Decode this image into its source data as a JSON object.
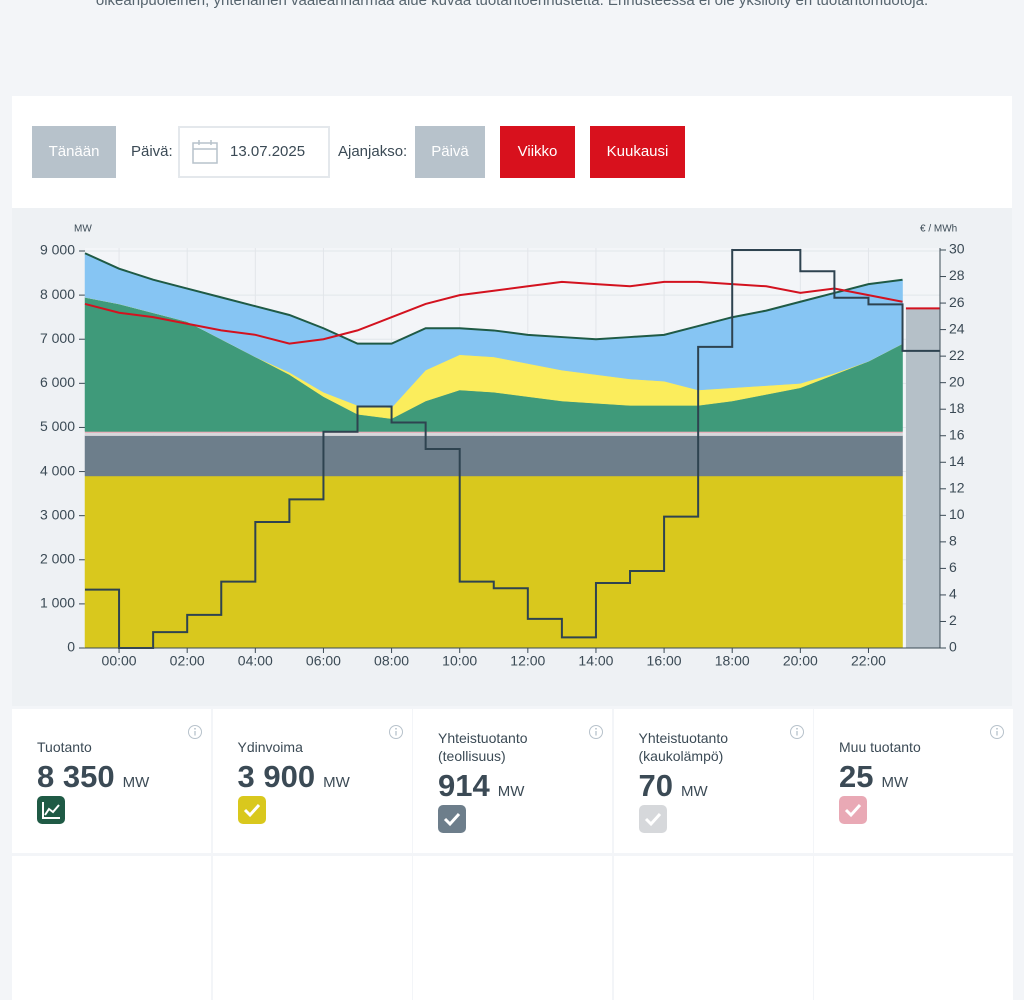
{
  "intro_text": "oikeanpuoleinen, yhtenäinen vaaleanharmaa alue kuvaa tuotantoennustetta. Ennusteessa ei ole yksilöity eri tuotantomuotoja.",
  "controls": {
    "today": "Tänään",
    "date_label": "Päivä:",
    "date": "13.07.2025",
    "period_label": "Ajanjakso:",
    "periods": [
      {
        "label": "Päivä",
        "active": true
      },
      {
        "label": "Viikko",
        "active": false
      },
      {
        "label": "Kuukausi",
        "active": false
      }
    ]
  },
  "chart_data": {
    "type": "area",
    "stacked": true,
    "y_unit": "MW",
    "y2_unit": "€ / MWh",
    "x": [
      -1,
      0,
      1,
      2,
      3,
      4,
      5,
      6,
      7,
      8,
      9,
      10,
      11,
      12,
      13,
      14,
      15,
      16,
      17,
      18,
      19,
      20,
      21,
      22,
      23
    ],
    "xlim": [
      -1,
      24.1
    ],
    "xticks": [
      {
        "value": 0,
        "label": "00:00"
      },
      {
        "value": 2,
        "label": "02:00"
      },
      {
        "value": 4,
        "label": "04:00"
      },
      {
        "value": 6,
        "label": "06:00"
      },
      {
        "value": 8,
        "label": "08:00"
      },
      {
        "value": 10,
        "label": "10:00"
      },
      {
        "value": 12,
        "label": "12:00"
      },
      {
        "value": 14,
        "label": "14:00"
      },
      {
        "value": 16,
        "label": "16:00"
      },
      {
        "value": 18,
        "label": "18:00"
      },
      {
        "value": 20,
        "label": "20:00"
      },
      {
        "value": 22,
        "label": "22:00"
      }
    ],
    "ylim": [
      0,
      9000
    ],
    "yticks": [
      0,
      {
        "value": 1000,
        "label": "1 000"
      },
      {
        "value": 2000,
        "label": "2 000"
      },
      {
        "value": 3000,
        "label": "3 000"
      },
      {
        "value": 4000,
        "label": "4 000"
      },
      {
        "value": 5000,
        "label": "5 000"
      },
      {
        "value": 6000,
        "label": "6 000"
      },
      {
        "value": 7000,
        "label": "7 000"
      },
      {
        "value": 8000,
        "label": "8 000"
      },
      {
        "value": 9000,
        "label": "9 000"
      }
    ],
    "y2lim": [
      0,
      30
    ],
    "y2ticks": [
      0,
      2,
      4,
      6,
      8,
      10,
      12,
      14,
      16,
      18,
      20,
      22,
      24,
      26,
      28,
      30
    ],
    "grid": true,
    "edge_color": "#1f5a45",
    "series": [
      {
        "type": "area",
        "color": "#d9c81d",
        "values": [
          3900,
          3900,
          3900,
          3900,
          3900,
          3900,
          3900,
          3900,
          3900,
          3900,
          3900,
          3900,
          3900,
          3900,
          3900,
          3900,
          3900,
          3900,
          3900,
          3900,
          3900,
          3900,
          3900,
          3900,
          3900
        ]
      },
      {
        "type": "area",
        "color": "#6d7e8b",
        "values": [
          914,
          914,
          914,
          914,
          914,
          914,
          914,
          914,
          914,
          914,
          914,
          914,
          914,
          914,
          914,
          914,
          914,
          914,
          914,
          914,
          914,
          914,
          914,
          914,
          914
        ]
      },
      {
        "type": "area",
        "color": "#d6d8db",
        "values": [
          70,
          70,
          70,
          70,
          70,
          70,
          70,
          70,
          70,
          70,
          70,
          70,
          70,
          70,
          70,
          70,
          70,
          70,
          70,
          70,
          70,
          70,
          70,
          70,
          70
        ]
      },
      {
        "type": "area",
        "color": "#e9a9b5",
        "values": [
          25,
          25,
          25,
          25,
          25,
          25,
          25,
          25,
          25,
          25,
          25,
          25,
          25,
          25,
          25,
          25,
          25,
          25,
          25,
          25,
          25,
          25,
          25,
          25,
          25
        ]
      },
      {
        "type": "area",
        "color": "#3f9a7a",
        "values": [
          3040,
          2890,
          2690,
          2490,
          2090,
          1690,
          1290,
          790,
          390,
          290,
          690,
          940,
          890,
          790,
          690,
          640,
          590,
          590,
          590,
          690,
          840,
          990,
          1290,
          1590,
          1990
        ]
      },
      {
        "type": "area",
        "color": "#fbed5c",
        "values": [
          0,
          0,
          0,
          0,
          0,
          0,
          50,
          100,
          200,
          250,
          700,
          800,
          800,
          750,
          700,
          650,
          600,
          550,
          350,
          300,
          200,
          100,
          30,
          0,
          0
        ]
      },
      {
        "type": "area",
        "color": "#86c5f3",
        "values": [
          1000,
          800,
          750,
          750,
          950,
          1150,
          1300,
          1450,
          1400,
          1450,
          950,
          600,
          600,
          650,
          750,
          800,
          950,
          1050,
          1450,
          1600,
          1700,
          1850,
          1820,
          1750,
          1450
        ]
      },
      {
        "type": "line",
        "color": "#d3121f",
        "values": [
          7800,
          7600,
          7500,
          7350,
          7200,
          7100,
          6900,
          7000,
          7200,
          7500,
          7800,
          8000,
          8100,
          8200,
          8300,
          8250,
          8200,
          8300,
          8300,
          8250,
          8200,
          8050,
          8150,
          8000,
          7850
        ]
      },
      {
        "type": "step",
        "axis": "y2",
        "color": "#2e4350",
        "values": [
          4.4,
          0,
          1.2,
          2.5,
          5.0,
          9.5,
          11.2,
          16.3,
          18.2,
          17.0,
          15.0,
          5.0,
          4.5,
          2.2,
          0.8,
          4.9,
          5.8,
          9.9,
          22.7,
          30,
          30,
          28.4,
          26.4,
          25.9,
          22.4
        ]
      }
    ],
    "forecast": {
      "x": [
        23.1,
        24.1
      ],
      "production": 7700,
      "consumption": 7700,
      "color": "#b5c0c8",
      "line_color": "#d3121f"
    }
  },
  "cards": [
    {
      "title": "Tuotanto",
      "value": "8 350",
      "unit": "MW",
      "color": "#1f5a45",
      "icon": "chart"
    },
    {
      "title": "Ydinvoima",
      "value": "3 900",
      "unit": "MW",
      "color": "#d9c81d",
      "icon": "check"
    },
    {
      "title": "Yhteistuotanto (teollisuus)",
      "value": "914",
      "unit": "MW",
      "color": "#6d7e8b",
      "icon": "check"
    },
    {
      "title": "Yhteistuotanto (kaukolämpö)",
      "value": "70",
      "unit": "MW",
      "color": "#d6d8db",
      "icon": "check"
    },
    {
      "title": "Muu tuotanto",
      "value": "25",
      "unit": "MW",
      "color": "#e9a9b5",
      "icon": "check"
    }
  ]
}
